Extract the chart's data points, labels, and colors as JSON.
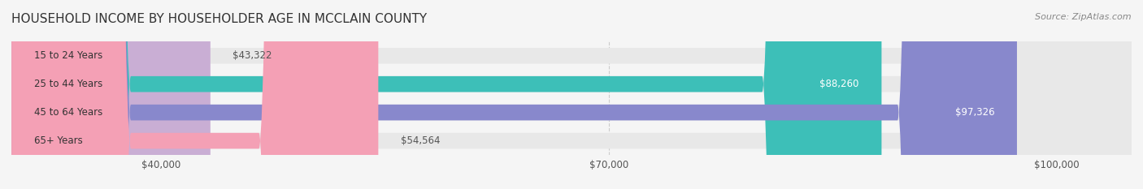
{
  "title": "HOUSEHOLD INCOME BY HOUSEHOLDER AGE IN MCCLAIN COUNTY",
  "source": "Source: ZipAtlas.com",
  "categories": [
    "15 to 24 Years",
    "25 to 44 Years",
    "45 to 64 Years",
    "65+ Years"
  ],
  "values": [
    43322,
    88260,
    97326,
    54564
  ],
  "bar_colors": [
    "#c9aed4",
    "#3dbfb8",
    "#8888cc",
    "#f4a0b5"
  ],
  "label_colors": [
    "#555555",
    "#ffffff",
    "#ffffff",
    "#555555"
  ],
  "xlim": [
    30000,
    105000
  ],
  "xticks": [
    40000,
    70000,
    100000
  ],
  "xtick_labels": [
    "$40,000",
    "$70,000",
    "$100,000"
  ],
  "bar_height": 0.55,
  "background_color": "#f5f5f5",
  "bar_bg_color": "#e8e8e8",
  "title_fontsize": 11,
  "source_fontsize": 8,
  "label_fontsize": 8.5,
  "value_fontsize": 8.5,
  "tick_fontsize": 8.5,
  "cat_fontsize": 8.5
}
